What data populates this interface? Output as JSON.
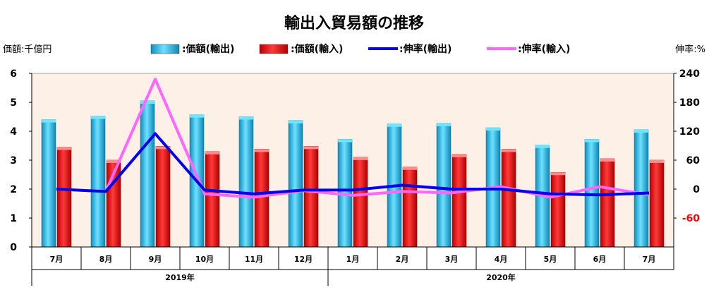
{
  "chart_data": {
    "type": "bar",
    "title": "輸出入貿易額の推移",
    "y_left_unit": "価額:千億円",
    "y_right_unit": "伸率:%",
    "categories": [
      "7月",
      "8月",
      "9月",
      "10月",
      "11月",
      "12月",
      "1月",
      "2月",
      "3月",
      "4月",
      "5月",
      "6月",
      "7月"
    ],
    "year_groups": [
      {
        "label": "2019年",
        "count": 6
      },
      {
        "label": "2020年",
        "count": 7
      }
    ],
    "ylim_left": [
      0,
      6
    ],
    "yticks_left": [
      "0",
      "1",
      "2",
      "3",
      "4",
      "5",
      "6"
    ],
    "ylim_right": [
      -120,
      240
    ],
    "yticks_right": [
      "-60",
      "0",
      "60",
      "120",
      "180",
      "240"
    ],
    "grid": false,
    "legend_position": "top",
    "series": [
      {
        "name": ":価額(輸出)",
        "kind": "bar",
        "axis": "left",
        "color": "#1fb6e0",
        "values": [
          4.4,
          4.52,
          5.05,
          4.57,
          4.5,
          4.37,
          3.72,
          4.25,
          4.27,
          4.12,
          3.52,
          3.72,
          4.05
        ]
      },
      {
        "name": ":価額(輸入)",
        "kind": "bar",
        "axis": "left",
        "color": "#ff0000",
        "values": [
          3.45,
          3.0,
          3.48,
          3.3,
          3.38,
          3.48,
          3.1,
          2.76,
          3.2,
          3.38,
          2.58,
          3.05,
          3.0
        ]
      },
      {
        "name": ":伸率(輸出)",
        "kind": "line",
        "axis": "right",
        "color": "#0000ee",
        "values": [
          0,
          -5,
          115,
          -2,
          -10,
          -2,
          -2,
          8,
          0,
          0,
          -10,
          -12,
          -8
        ]
      },
      {
        "name": ":伸率(輸入)",
        "kind": "line",
        "axis": "right",
        "color": "#ff66ff",
        "values": [
          0,
          -5,
          228,
          -10,
          -17,
          -3,
          -13,
          -5,
          -8,
          5,
          -17,
          5,
          -12
        ]
      }
    ]
  }
}
